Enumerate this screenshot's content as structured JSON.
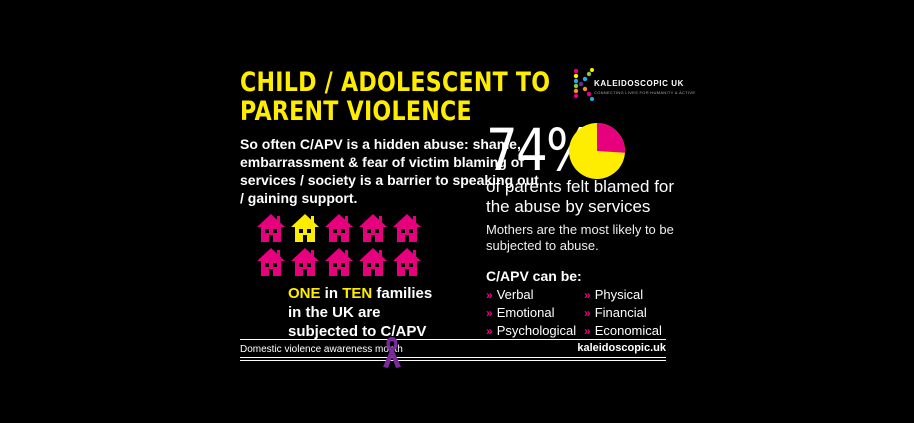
{
  "title": [
    "CHILD / ADOLESCENT TO",
    "PARENT VIOLENCE"
  ],
  "intro": "So often C/APV is a hidden abuse: shame, embarrassment & fear of victim blaming of services / society is a barrier to speaking out / gaining support.",
  "houses": {
    "total": 10,
    "highlighted": 1,
    "highlight_color": "#ffed00",
    "base_color": "#e6007e"
  },
  "families_stat": {
    "one": "ONE",
    "in": " in ",
    "ten": "TEN",
    "rest": " families in the UK are subjected to C/APV"
  },
  "percent": "74%",
  "pie": {
    "value": 0.74,
    "main_color": "#ffed00",
    "slice_color": "#e6007e"
  },
  "blamed_text": "of parents felt blamed for the abuse by services",
  "mothers_text": "Mothers are the most likely to be subjected to abuse.",
  "forms_heading": "C/APV can be:",
  "forms_left": [
    "Verbal",
    "Emotional",
    "Psychological"
  ],
  "forms_right": [
    "Physical",
    "Financial",
    "Economical"
  ],
  "logo": {
    "letter": "K",
    "name": "KALEIDOSCOPIC UK",
    "tagline": "CONNECTING LIVES FOR HUMANITY & ACTIVE"
  },
  "footer": {
    "left": "Domestic violence awareness month",
    "right": "kaleidoscopic.uk"
  },
  "colors": {
    "accent_yellow": "#ffed00",
    "accent_pink": "#e6007e",
    "ribbon_purple": "#7a2a9c"
  }
}
